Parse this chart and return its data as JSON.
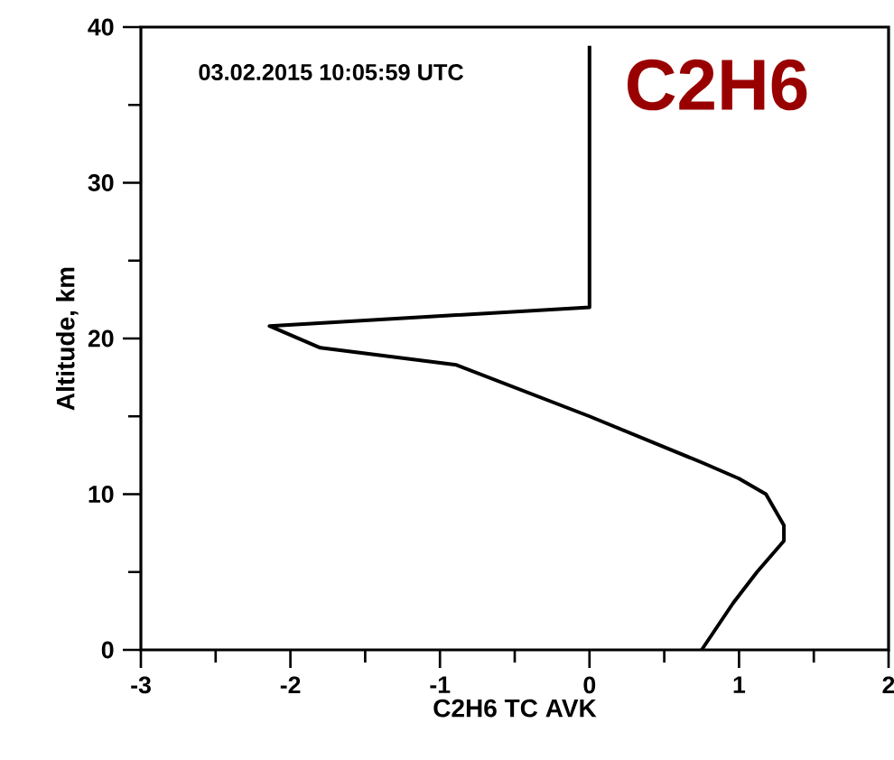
{
  "chart_data": {
    "type": "line",
    "title": "C2H6",
    "xlabel": "C2H6 TC AVK",
    "ylabel": "Altitude, km",
    "annotations": [
      "03.02.2015 10:05:59 UTC"
    ],
    "series": [
      {
        "color": "#000000",
        "x": [
          0.75,
          0.96,
          1.12,
          1.3,
          1.3,
          1.24,
          1.18,
          1.0,
          0.76,
          0.0,
          -0.89,
          -1.8,
          -2.14,
          0.0,
          0.0
        ],
        "values": [
          0,
          3,
          5,
          7,
          8,
          9,
          10,
          11,
          12,
          15,
          18.3,
          19.4,
          20.8,
          22.0,
          38.8
        ]
      }
    ],
    "xlim": [
      -3,
      2
    ],
    "ylim": [
      0,
      40
    ],
    "xticks": [
      -3,
      -2,
      -1,
      0,
      1,
      2
    ],
    "yticks": [
      0,
      10,
      20,
      30,
      40
    ],
    "grid": false,
    "marker": "none",
    "line_style": "solid"
  }
}
